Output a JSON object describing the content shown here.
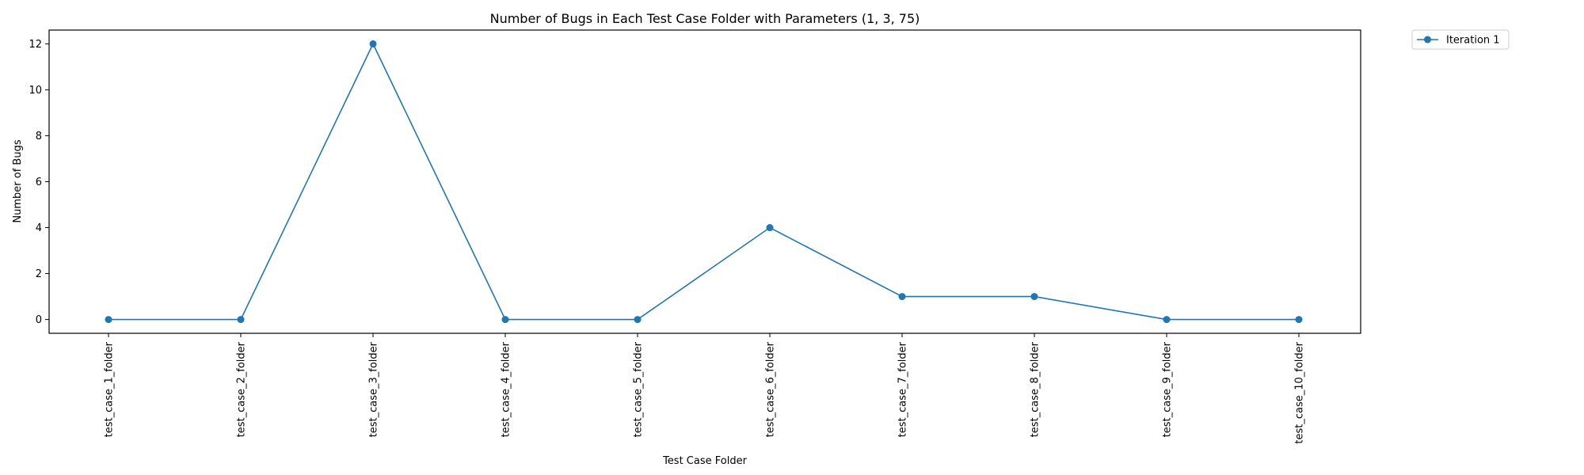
{
  "chart_data": {
    "type": "line",
    "title": "Number of Bugs in Each Test Case Folder with Parameters (1, 3, 75)",
    "xlabel": "Test Case Folder",
    "ylabel": "Number of Bugs",
    "categories": [
      "test_case_1_folder",
      "test_case_2_folder",
      "test_case_3_folder",
      "test_case_4_folder",
      "test_case_5_folder",
      "test_case_6_folder",
      "test_case_7_folder",
      "test_case_8_folder",
      "test_case_9_folder",
      "test_case_10_folder"
    ],
    "series": [
      {
        "name": "Iteration 1",
        "values": [
          0,
          0,
          12,
          0,
          0,
          4,
          1,
          1,
          0,
          0
        ],
        "color": "#1f77b4",
        "marker": "circle"
      }
    ],
    "yticks": [
      0,
      2,
      4,
      6,
      8,
      10,
      12
    ],
    "ylim": [
      -0.6,
      12.6
    ],
    "grid": false,
    "legend_position": "outside-top-right",
    "tick_label_rotation": "vertical"
  }
}
